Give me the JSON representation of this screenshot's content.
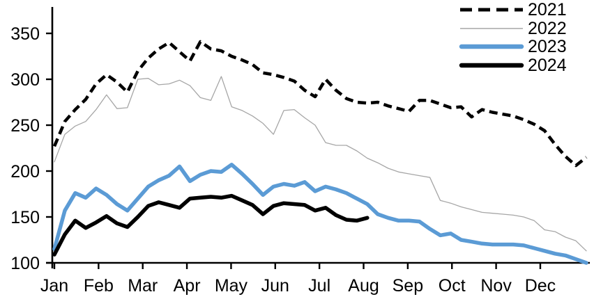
{
  "chart": {
    "background": "#ffffff",
    "axis_color": "#000000",
    "text_color": "#000000",
    "yticks": [
      100,
      150,
      200,
      250,
      300,
      350
    ],
    "xtick_labels": [
      "Jan",
      "Feb",
      "Mar",
      "Apr",
      "May",
      "Jun",
      "Jul",
      "Aug",
      "Sep",
      "Oct",
      "Nov",
      "Dec"
    ],
    "ylim": [
      100,
      375
    ],
    "grid": false,
    "legend_position": "top-right"
  },
  "chart_data": {
    "type": "line",
    "title": "",
    "xlabel": "",
    "ylabel": "",
    "x_unit": "weekly points from Jan through Dec",
    "ylim": [
      100,
      375
    ],
    "series": [
      {
        "name": "2021",
        "color": "#000000",
        "style": "dashed",
        "width": 4.5,
        "values": [
          227,
          254,
          267,
          278,
          295,
          305,
          297,
          286,
          309,
          323,
          333,
          340,
          330,
          320,
          341,
          333,
          331,
          325,
          321,
          316,
          307,
          305,
          302,
          298,
          288,
          281,
          300,
          288,
          279,
          275,
          274,
          275,
          271,
          268,
          265,
          277,
          277,
          273,
          269,
          270,
          259,
          267,
          264,
          262,
          260,
          256,
          251,
          244,
          229,
          216,
          206,
          215
        ]
      },
      {
        "name": "2022",
        "color": "#a6a6a6",
        "style": "solid",
        "width": 1.3,
        "values": [
          210,
          240,
          249,
          254,
          267,
          283,
          268,
          269,
          300,
          301,
          294,
          295,
          299,
          293,
          280,
          277,
          303,
          270,
          266,
          260,
          252,
          240,
          266,
          267,
          258,
          250,
          231,
          228,
          228,
          222,
          214,
          209,
          203,
          199,
          197,
          195,
          193,
          168,
          165,
          161,
          158,
          155,
          154,
          153,
          152,
          150,
          146,
          136,
          134,
          128,
          124,
          113
        ]
      },
      {
        "name": "2023",
        "color": "#5b9bd5",
        "style": "solid",
        "width": 5.5,
        "values": [
          115,
          157,
          176,
          171,
          181,
          174,
          164,
          157,
          170,
          183,
          190,
          195,
          205,
          189,
          196,
          200,
          199,
          207,
          197,
          186,
          174,
          183,
          186,
          184,
          188,
          178,
          183,
          180,
          176,
          170,
          164,
          153,
          149,
          146,
          146,
          145,
          137,
          130,
          132,
          125,
          123,
          121,
          120,
          120,
          120,
          119,
          116,
          113,
          110,
          108,
          104,
          100
        ]
      },
      {
        "name": "2024",
        "color": "#000000",
        "style": "solid",
        "width": 5.5,
        "values": [
          109,
          131,
          146,
          138,
          144,
          151,
          143,
          139,
          150,
          162,
          166,
          163,
          160,
          170,
          171,
          172,
          171,
          173,
          168,
          163,
          153,
          162,
          165,
          164,
          163,
          157,
          160,
          152,
          147,
          146,
          149
        ]
      }
    ]
  }
}
